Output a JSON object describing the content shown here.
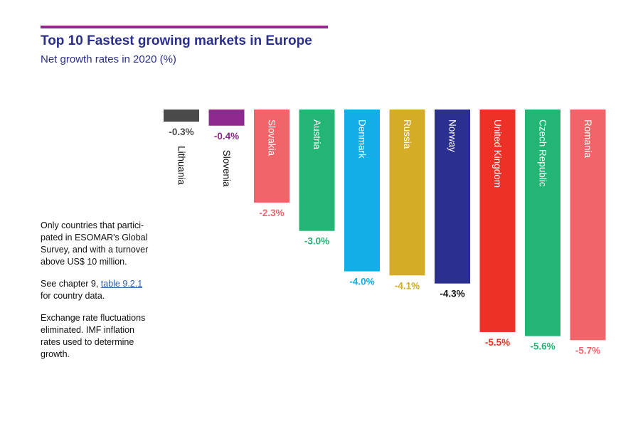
{
  "header": {
    "title": "Top 10 Fastest growing markets in Europe",
    "subtitle": "Net growth rates in 2020 (%)"
  },
  "notes": {
    "p1": [
      "Only countries that partici-",
      "pated in ESOMAR's Global",
      "Survey, and with a turnover",
      "above US$ 10 million."
    ],
    "p2_prefix": "See chapter 9, ",
    "p2_link": "table 9.2.1",
    "p2_suffix": "for country data.",
    "p3": [
      "Exchange rate fluctuations",
      "eliminated. IMF inflation",
      "rates used to determine",
      "growth."
    ]
  },
  "colors": {
    "accent_rule": "#8e2a8f",
    "title": "#2a2f8a"
  },
  "chart_data": {
    "type": "bar",
    "orientation": "vertical-negative",
    "title": "Top 10 Fastest growing markets in Europe",
    "subtitle": "Net growth rates in 2020 (%)",
    "categories": [
      "Lithuania",
      "Slovenia",
      "Slovakia",
      "Austria",
      "Denmark",
      "Russia",
      "Norway",
      "United Kingdom",
      "Czech Republic",
      "Romania"
    ],
    "values": [
      -0.3,
      -0.4,
      -2.3,
      -3.0,
      -4.0,
      -4.1,
      -4.3,
      -5.5,
      -5.6,
      -5.7
    ],
    "value_labels": [
      "-0.3%",
      "-0.4%",
      "-2.3%",
      "-3.0%",
      "-4.0%",
      "-4.1%",
      "-4.3%",
      "-5.5%",
      "-5.6%",
      "-5.7%"
    ],
    "bar_colors": [
      "#4a4a4a",
      "#8e2a8f",
      "#f0646a",
      "#22b573",
      "#11aee8",
      "#d4ac26",
      "#2b2f8f",
      "#ee3127",
      "#22b573",
      "#f0646a"
    ],
    "label_colors": [
      "#4a4a4a",
      "#8e2a8f",
      "#f0646a",
      "#22b573",
      "#11aee8",
      "#d4ac26",
      "#111111",
      "#ee3127",
      "#22b573",
      "#f0646a"
    ],
    "ylim": [
      -6,
      0
    ],
    "grid": false,
    "legend": "none"
  }
}
